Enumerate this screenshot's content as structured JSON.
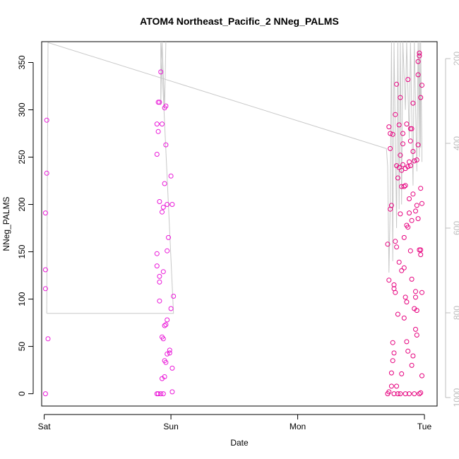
{
  "chart_data": {
    "type": "scatter",
    "title": "ATOM4 Northeast_Pacific_2 NNeg_PALMS",
    "xlabel": "Date",
    "ylabel": "NNeg_PALMS",
    "x_ticks": [
      "Sat",
      "Sun",
      "Mon",
      "Tue"
    ],
    "y_ticks": [
      0,
      50,
      100,
      150,
      200,
      250,
      300,
      350
    ],
    "y_right_ticks": [
      200,
      400,
      600,
      800,
      1000
    ],
    "xlim_days": [
      -0.02,
      3.1
    ],
    "ylim": [
      -13,
      372
    ],
    "y_right_lim": [
      1020,
      160
    ],
    "colors": {
      "points": "#e6007e",
      "line": "#c8c8c8",
      "axis": "#000000",
      "right_axis": "#bdbdbd"
    },
    "series": [
      {
        "values": [
          [
            0.01,
            0
          ],
          [
            0.01,
            111
          ],
          [
            0.01,
            131
          ],
          [
            0.01,
            191
          ],
          [
            0.02,
            233
          ],
          [
            0.02,
            289
          ],
          [
            0.03,
            58
          ],
          [
            0.89,
            0
          ],
          [
            0.89,
            135
          ],
          [
            0.89,
            148
          ],
          [
            0.89,
            253
          ],
          [
            0.89,
            285
          ],
          [
            0.9,
            277
          ],
          [
            0.9,
            308
          ],
          [
            0.9,
            0
          ],
          [
            0.91,
            98
          ],
          [
            0.91,
            118
          ],
          [
            0.91,
            124
          ],
          [
            0.91,
            203
          ],
          [
            0.91,
            308
          ],
          [
            0.92,
            340
          ],
          [
            0.92,
            0
          ],
          [
            0.93,
            16
          ],
          [
            0.93,
            60
          ],
          [
            0.93,
            192
          ],
          [
            0.93,
            285
          ],
          [
            0.94,
            0
          ],
          [
            0.94,
            58
          ],
          [
            0.94,
            129
          ],
          [
            0.94,
            197
          ],
          [
            0.95,
            18
          ],
          [
            0.95,
            35
          ],
          [
            0.95,
            72
          ],
          [
            0.95,
            222
          ],
          [
            0.95,
            302
          ],
          [
            0.96,
            33
          ],
          [
            0.96,
            73
          ],
          [
            0.96,
            263
          ],
          [
            0.96,
            304
          ],
          [
            0.97,
            42
          ],
          [
            0.97,
            78
          ],
          [
            0.97,
            151
          ],
          [
            0.97,
            200
          ],
          [
            0.98,
            165
          ],
          [
            0.99,
            43
          ],
          [
            0.99,
            46
          ],
          [
            1.0,
            90
          ],
          [
            1.0,
            230
          ],
          [
            1.01,
            200
          ],
          [
            1.01,
            27
          ],
          [
            1.01,
            2
          ],
          [
            1.02,
            103
          ],
          [
            2.71,
            0
          ],
          [
            2.71,
            158
          ],
          [
            2.72,
            282
          ],
          [
            2.72,
            120
          ],
          [
            2.72,
            2
          ],
          [
            2.73,
            275
          ],
          [
            2.73,
            259
          ],
          [
            2.73,
            195
          ],
          [
            2.74,
            199
          ],
          [
            2.74,
            8
          ],
          [
            2.74,
            22
          ],
          [
            2.75,
            274
          ],
          [
            2.75,
            35
          ],
          [
            2.75,
            54
          ],
          [
            2.76,
            43
          ],
          [
            2.76,
            115
          ],
          [
            2.76,
            111
          ],
          [
            2.76,
            0
          ],
          [
            2.77,
            107
          ],
          [
            2.77,
            161
          ],
          [
            2.77,
            295
          ],
          [
            2.78,
            327
          ],
          [
            2.78,
            8
          ],
          [
            2.78,
            155
          ],
          [
            2.78,
            241
          ],
          [
            2.79,
            84
          ],
          [
            2.79,
            228
          ],
          [
            2.79,
            0
          ],
          [
            2.8,
            139
          ],
          [
            2.8,
            239
          ],
          [
            2.8,
            284
          ],
          [
            2.81,
            0
          ],
          [
            2.81,
            190
          ],
          [
            2.81,
            252
          ],
          [
            2.81,
            313
          ],
          [
            2.82,
            236
          ],
          [
            2.82,
            219
          ],
          [
            2.82,
            130
          ],
          [
            2.82,
            21
          ],
          [
            2.83,
            242
          ],
          [
            2.83,
            264
          ],
          [
            2.83,
            275
          ],
          [
            2.84,
            80
          ],
          [
            2.84,
            133
          ],
          [
            2.84,
            165
          ],
          [
            2.84,
            219
          ],
          [
            2.85,
            220
          ],
          [
            2.85,
            0
          ],
          [
            2.85,
            102
          ],
          [
            2.85,
            238
          ],
          [
            2.86,
            55
          ],
          [
            2.86,
            285
          ],
          [
            2.86,
            178
          ],
          [
            2.86,
            97
          ],
          [
            2.87,
            240
          ],
          [
            2.87,
            45
          ],
          [
            2.87,
            176
          ],
          [
            2.87,
            332
          ],
          [
            2.88,
            206
          ],
          [
            2.88,
            0
          ],
          [
            2.88,
            191
          ],
          [
            2.88,
            245
          ],
          [
            2.89,
            151
          ],
          [
            2.89,
            241
          ],
          [
            2.89,
            267
          ],
          [
            2.89,
            280
          ],
          [
            2.9,
            30
          ],
          [
            2.9,
            280
          ],
          [
            2.9,
            121
          ],
          [
            2.9,
            183
          ],
          [
            2.91,
            40
          ],
          [
            2.91,
            211
          ],
          [
            2.91,
            307
          ],
          [
            2.91,
            256
          ],
          [
            2.92,
            90
          ],
          [
            2.92,
            246
          ],
          [
            2.92,
            0
          ],
          [
            2.93,
            102
          ],
          [
            2.93,
            193
          ],
          [
            2.93,
            68
          ],
          [
            2.93,
            108
          ],
          [
            2.94,
            199
          ],
          [
            2.94,
            88
          ],
          [
            2.94,
            247
          ],
          [
            2.94,
            62
          ],
          [
            2.95,
            263
          ],
          [
            2.95,
            337
          ],
          [
            2.95,
            185
          ],
          [
            2.95,
            351
          ],
          [
            2.96,
            152
          ],
          [
            2.96,
            0
          ],
          [
            2.96,
            357
          ],
          [
            2.96,
            360
          ],
          [
            2.97,
            147
          ],
          [
            2.97,
            152
          ],
          [
            2.97,
            217
          ],
          [
            2.97,
            313
          ],
          [
            2.98,
            19
          ],
          [
            2.98,
            201
          ],
          [
            2.98,
            326
          ],
          [
            2.98,
            107
          ],
          [
            2.97,
            1
          ]
        ]
      }
    ],
    "line_series": [
      [
        0.02,
        85
      ],
      [
        0.02,
        85
      ],
      [
        0.03,
        371
      ],
      [
        2.7,
        259
      ],
      [
        2.71,
        240
      ],
      [
        2.72,
        128
      ],
      [
        2.73,
        200
      ],
      [
        2.74,
        372
      ],
      [
        2.75,
        140
      ],
      [
        2.76,
        372
      ],
      [
        2.78,
        175
      ],
      [
        2.79,
        372
      ],
      [
        2.8,
        195
      ],
      [
        2.81,
        372
      ],
      [
        2.82,
        200
      ],
      [
        2.83,
        372
      ],
      [
        2.85,
        300
      ],
      [
        2.86,
        372
      ],
      [
        2.88,
        270
      ],
      [
        2.89,
        372
      ],
      [
        2.91,
        220
      ],
      [
        2.92,
        372
      ],
      [
        2.94,
        235
      ],
      [
        2.95,
        372
      ],
      [
        2.96,
        250
      ],
      [
        2.96,
        372
      ],
      [
        2.97,
        260
      ],
      [
        2.97,
        372
      ],
      [
        2.98,
        259
      ],
      [
        2.98,
        245
      ]
    ],
    "line_series_2": [
      [
        0.02,
        85
      ],
      [
        0.9,
        85
      ],
      [
        1.02,
        85
      ],
      [
        0.92,
        372
      ],
      [
        0.92,
        305
      ],
      [
        0.93,
        372
      ],
      [
        0.95,
        302
      ],
      [
        0.96,
        372
      ]
    ]
  }
}
